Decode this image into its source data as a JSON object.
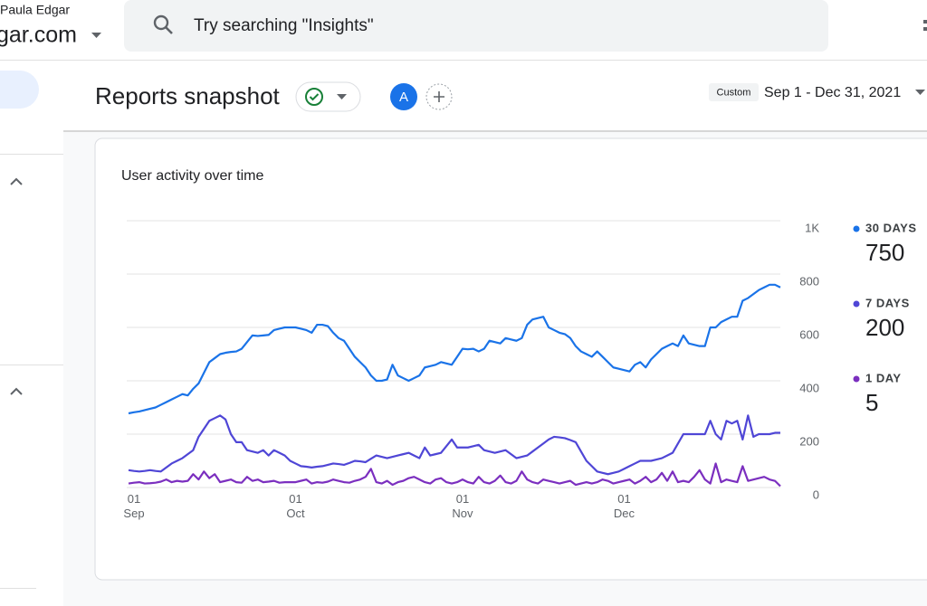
{
  "header": {
    "account": "Paula Edgar",
    "property": "gar.com",
    "search_placeholder": "Try searching \"Insights\"",
    "report_title": "Reports snapshot",
    "avatar": "A",
    "date_chip": "Custom",
    "date_range": "Sep 1 - Dec 31, 2021"
  },
  "chart_data": {
    "type": "line",
    "title": "User activity over time",
    "categories": [
      "01 Sep",
      null,
      null,
      null,
      null,
      null,
      null,
      null,
      null,
      null,
      null,
      null,
      null,
      null,
      null,
      null,
      null,
      null,
      null,
      null,
      null,
      null,
      null,
      null,
      null,
      null,
      null,
      null,
      null,
      null,
      "01 Oct",
      null,
      null,
      null,
      null,
      null,
      null,
      null,
      null,
      null,
      null,
      null,
      null,
      null,
      null,
      null,
      null,
      null,
      null,
      null,
      null,
      null,
      null,
      null,
      null,
      null,
      null,
      null,
      null,
      null,
      null,
      "01 Nov",
      null,
      null,
      null,
      null,
      null,
      null,
      null,
      null,
      null,
      null,
      null,
      null,
      null,
      null,
      null,
      null,
      null,
      null,
      null,
      null,
      null,
      null,
      null,
      null,
      null,
      null,
      null,
      null,
      null,
      "01 Dec",
      null,
      null,
      null,
      null,
      null,
      null,
      null,
      null,
      null,
      null,
      null,
      null,
      null,
      null,
      null,
      null,
      null,
      null,
      null,
      null,
      null,
      null,
      null,
      null,
      null,
      null,
      null,
      null,
      null,
      null
    ],
    "ylim": [
      0,
      1000
    ],
    "yticks": [
      0,
      200,
      400,
      600,
      800,
      {
        "value": 1000,
        "label": "1K"
      }
    ],
    "grid": true,
    "legend": "right",
    "series": [
      {
        "name": "30 DAYS",
        "color": "#1a73e8",
        "summary": 750,
        "values": [
          278,
          282,
          285,
          290,
          295,
          300,
          310,
          320,
          330,
          340,
          350,
          345,
          370,
          390,
          430,
          470,
          485,
          500,
          505,
          508,
          510,
          520,
          545,
          570,
          568,
          570,
          572,
          590,
          595,
          600,
          600,
          600,
          595,
          590,
          580,
          610,
          610,
          605,
          580,
          560,
          550,
          520,
          490,
          470,
          450,
          420,
          400,
          400,
          405,
          460,
          420,
          410,
          400,
          410,
          420,
          450,
          455,
          460,
          470,
          465,
          460,
          490,
          520,
          518,
          520,
          510,
          520,
          550,
          545,
          540,
          560,
          555,
          550,
          560,
          610,
          630,
          635,
          640,
          600,
          590,
          580,
          575,
          560,
          530,
          510,
          500,
          490,
          510,
          490,
          470,
          450,
          445,
          440,
          435,
          460,
          470,
          450,
          480,
          500,
          520,
          530,
          540,
          530,
          570,
          540,
          535,
          530,
          530,
          600,
          600,
          620,
          630,
          640,
          640,
          700,
          710,
          725,
          740,
          750,
          760,
          760,
          750
        ]
      },
      {
        "name": "7 DAYS",
        "color": "#4f46d6",
        "summary": 200,
        "values": [
          65,
          62,
          60,
          62,
          65,
          62,
          60,
          75,
          90,
          100,
          110,
          125,
          140,
          190,
          220,
          250,
          260,
          270,
          255,
          200,
          170,
          170,
          140,
          135,
          130,
          140,
          120,
          140,
          130,
          120,
          100,
          90,
          80,
          78,
          75,
          78,
          80,
          85,
          90,
          88,
          85,
          92,
          100,
          98,
          95,
          108,
          120,
          115,
          110,
          115,
          120,
          125,
          130,
          120,
          110,
          150,
          120,
          125,
          130,
          155,
          180,
          150,
          150,
          150,
          155,
          160,
          140,
          135,
          130,
          135,
          140,
          125,
          110,
          115,
          120,
          135,
          150,
          165,
          180,
          190,
          188,
          185,
          178,
          170,
          135,
          100,
          80,
          60,
          55,
          50,
          55,
          60,
          70,
          80,
          90,
          100,
          100,
          100,
          105,
          110,
          120,
          130,
          165,
          200,
          200,
          200,
          200,
          200,
          250,
          200,
          180,
          250,
          240,
          250,
          180,
          270,
          190,
          200,
          200,
          200,
          205,
          205
        ]
      },
      {
        "name": "1 DAY",
        "color": "#7b2fbf",
        "summary": 5,
        "values": [
          15,
          18,
          20,
          15,
          16,
          18,
          22,
          30,
          20,
          25,
          22,
          25,
          50,
          30,
          60,
          35,
          50,
          20,
          25,
          30,
          20,
          18,
          40,
          25,
          30,
          20,
          22,
          25,
          18,
          20,
          20,
          20,
          25,
          30,
          15,
          20,
          18,
          22,
          30,
          25,
          20,
          18,
          25,
          30,
          40,
          70,
          20,
          15,
          25,
          10,
          20,
          25,
          35,
          40,
          30,
          20,
          15,
          30,
          35,
          20,
          15,
          20,
          30,
          20,
          15,
          40,
          20,
          15,
          25,
          45,
          20,
          15,
          25,
          60,
          30,
          20,
          15,
          30,
          25,
          20,
          15,
          20,
          25,
          10,
          15,
          20,
          15,
          20,
          30,
          25,
          15,
          20,
          25,
          30,
          15,
          25,
          40,
          20,
          30,
          55,
          25,
          60,
          20,
          25,
          20,
          40,
          65,
          30,
          15,
          90,
          20,
          30,
          25,
          20,
          80,
          25,
          30,
          35,
          40,
          30,
          25,
          5
        ]
      }
    ]
  }
}
